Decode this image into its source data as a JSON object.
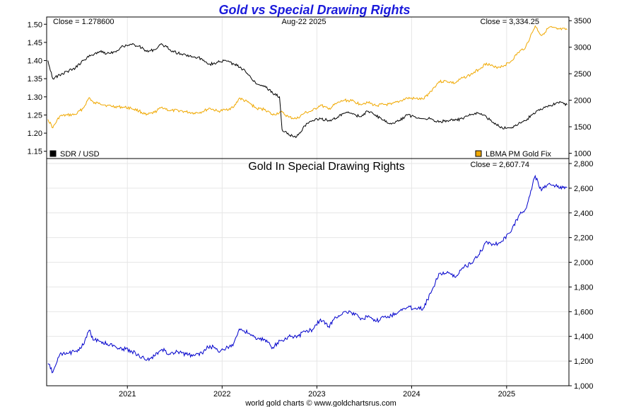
{
  "chart_data": [
    {
      "type": "line",
      "title": "Gold vs Special Drawing Rights",
      "date_label": "Aug-22 2025",
      "x_ticks": [
        "2021",
        "2022",
        "2023",
        "2024",
        "2025"
      ],
      "y_left": {
        "ticks": [
          "1.15",
          "1.20",
          "1.25",
          "1.30",
          "1.35",
          "1.40",
          "1.45",
          "1.50"
        ],
        "range": [
          1.13,
          1.52
        ]
      },
      "y_right": {
        "ticks": [
          "1000",
          "1500",
          "2000",
          "2500",
          "3000",
          "3500"
        ],
        "range": [
          900,
          3570
        ]
      },
      "series": [
        {
          "name": "SDR / USD",
          "axis": "left",
          "color": "#000000",
          "close_text": "Close = 1.278600",
          "points": [
            [
              "2020-03-01",
              1.4
            ],
            [
              "2020-03-20",
              1.35
            ],
            [
              "2020-04-15",
              1.36
            ],
            [
              "2020-05-15",
              1.37
            ],
            [
              "2020-06-15",
              1.38
            ],
            [
              "2020-07-15",
              1.4
            ],
            [
              "2020-08-15",
              1.415
            ],
            [
              "2020-09-15",
              1.425
            ],
            [
              "2020-10-15",
              1.42
            ],
            [
              "2020-11-15",
              1.425
            ],
            [
              "2020-12-15",
              1.44
            ],
            [
              "2021-01-15",
              1.445
            ],
            [
              "2021-02-15",
              1.44
            ],
            [
              "2021-03-15",
              1.425
            ],
            [
              "2021-04-15",
              1.43
            ],
            [
              "2021-05-15",
              1.445
            ],
            [
              "2021-06-15",
              1.43
            ],
            [
              "2021-07-15",
              1.42
            ],
            [
              "2021-08-15",
              1.415
            ],
            [
              "2021-09-15",
              1.41
            ],
            [
              "2021-10-15",
              1.405
            ],
            [
              "2021-11-15",
              1.39
            ],
            [
              "2021-12-15",
              1.395
            ],
            [
              "2022-01-15",
              1.4
            ],
            [
              "2022-02-15",
              1.39
            ],
            [
              "2022-03-15",
              1.38
            ],
            [
              "2022-04-15",
              1.36
            ],
            [
              "2022-05-15",
              1.335
            ],
            [
              "2022-06-15",
              1.33
            ],
            [
              "2022-07-15",
              1.31
            ],
            [
              "2022-08-10",
              1.3
            ],
            [
              "2022-08-20",
              1.21
            ],
            [
              "2022-09-15",
              1.195
            ],
            [
              "2022-10-15",
              1.19
            ],
            [
              "2022-11-15",
              1.22
            ],
            [
              "2022-12-15",
              1.235
            ],
            [
              "2023-01-15",
              1.24
            ],
            [
              "2023-02-15",
              1.235
            ],
            [
              "2023-03-15",
              1.24
            ],
            [
              "2023-04-15",
              1.255
            ],
            [
              "2023-05-15",
              1.255
            ],
            [
              "2023-06-15",
              1.245
            ],
            [
              "2023-07-15",
              1.26
            ],
            [
              "2023-08-15",
              1.25
            ],
            [
              "2023-09-15",
              1.235
            ],
            [
              "2023-10-15",
              1.225
            ],
            [
              "2023-11-15",
              1.235
            ],
            [
              "2023-12-15",
              1.25
            ],
            [
              "2024-01-15",
              1.245
            ],
            [
              "2024-02-15",
              1.24
            ],
            [
              "2024-03-15",
              1.24
            ],
            [
              "2024-04-15",
              1.23
            ],
            [
              "2024-05-15",
              1.235
            ],
            [
              "2024-06-15",
              1.235
            ],
            [
              "2024-07-15",
              1.24
            ],
            [
              "2024-08-15",
              1.25
            ],
            [
              "2024-09-15",
              1.255
            ],
            [
              "2024-10-15",
              1.245
            ],
            [
              "2024-11-15",
              1.225
            ],
            [
              "2024-12-15",
              1.215
            ],
            [
              "2025-01-15",
              1.215
            ],
            [
              "2025-02-15",
              1.225
            ],
            [
              "2025-03-15",
              1.235
            ],
            [
              "2025-04-15",
              1.255
            ],
            [
              "2025-05-15",
              1.265
            ],
            [
              "2025-06-15",
              1.275
            ],
            [
              "2025-07-15",
              1.285
            ],
            [
              "2025-08-22",
              1.2786
            ]
          ]
        },
        {
          "name": "LBMA PM Gold Fix",
          "axis": "right",
          "color": "#f0a800",
          "close_text": "Close = 3,334.25",
          "points": [
            [
              "2020-03-01",
              1640
            ],
            [
              "2020-03-20",
              1480
            ],
            [
              "2020-04-15",
              1700
            ],
            [
              "2020-05-15",
              1720
            ],
            [
              "2020-06-15",
              1730
            ],
            [
              "2020-07-15",
              1850
            ],
            [
              "2020-08-07",
              2050
            ],
            [
              "2020-08-25",
              1940
            ],
            [
              "2020-09-15",
              1950
            ],
            [
              "2020-10-15",
              1900
            ],
            [
              "2020-11-15",
              1880
            ],
            [
              "2020-12-15",
              1870
            ],
            [
              "2021-01-15",
              1850
            ],
            [
              "2021-02-15",
              1800
            ],
            [
              "2021-03-15",
              1720
            ],
            [
              "2021-04-15",
              1770
            ],
            [
              "2021-05-15",
              1870
            ],
            [
              "2021-06-15",
              1800
            ],
            [
              "2021-07-15",
              1810
            ],
            [
              "2021-08-15",
              1780
            ],
            [
              "2021-09-15",
              1760
            ],
            [
              "2021-10-15",
              1780
            ],
            [
              "2021-11-15",
              1850
            ],
            [
              "2021-12-15",
              1790
            ],
            [
              "2022-01-15",
              1820
            ],
            [
              "2022-02-15",
              1870
            ],
            [
              "2022-03-08",
              2040
            ],
            [
              "2022-04-15",
              1950
            ],
            [
              "2022-05-15",
              1840
            ],
            [
              "2022-06-15",
              1830
            ],
            [
              "2022-07-15",
              1720
            ],
            [
              "2022-08-15",
              1780
            ],
            [
              "2022-09-15",
              1680
            ],
            [
              "2022-10-15",
              1650
            ],
            [
              "2022-11-15",
              1760
            ],
            [
              "2022-12-15",
              1800
            ],
            [
              "2023-01-15",
              1910
            ],
            [
              "2023-02-15",
              1830
            ],
            [
              "2023-03-15",
              1930
            ],
            [
              "2023-04-15",
              2000
            ],
            [
              "2023-05-15",
              1990
            ],
            [
              "2023-06-15",
              1930
            ],
            [
              "2023-07-15",
              1960
            ],
            [
              "2023-08-15",
              1900
            ],
            [
              "2023-09-15",
              1920
            ],
            [
              "2023-10-15",
              1920
            ],
            [
              "2023-11-15",
              1980
            ],
            [
              "2023-12-15",
              2040
            ],
            [
              "2024-01-15",
              2030
            ],
            [
              "2024-02-15",
              2020
            ],
            [
              "2024-03-15",
              2170
            ],
            [
              "2024-04-15",
              2350
            ],
            [
              "2024-05-15",
              2360
            ],
            [
              "2024-06-15",
              2320
            ],
            [
              "2024-07-15",
              2420
            ],
            [
              "2024-08-15",
              2480
            ],
            [
              "2024-09-15",
              2580
            ],
            [
              "2024-10-15",
              2700
            ],
            [
              "2024-11-15",
              2620
            ],
            [
              "2024-12-15",
              2640
            ],
            [
              "2025-01-15",
              2720
            ],
            [
              "2025-02-15",
              2900
            ],
            [
              "2025-03-15",
              3000
            ],
            [
              "2025-04-21",
              3400
            ],
            [
              "2025-05-15",
              3220
            ],
            [
              "2025-06-15",
              3380
            ],
            [
              "2025-07-15",
              3340
            ],
            [
              "2025-08-22",
              3334.25
            ]
          ]
        }
      ]
    },
    {
      "type": "line",
      "title": "Gold In Special Drawing Rights",
      "x_ticks": [
        "2021",
        "2022",
        "2023",
        "2024",
        "2025"
      ],
      "y_right": {
        "ticks": [
          "1,000",
          "1,200",
          "1,400",
          "1,600",
          "1,800",
          "2,000",
          "2,200",
          "2,400",
          "2,600",
          "2,800"
        ],
        "range": [
          1000,
          2840
        ]
      },
      "series": [
        {
          "color": "#0000cc",
          "close_text": "Close = 2,607.74",
          "points": [
            [
              "2020-03-01",
              1180
            ],
            [
              "2020-03-20",
              1110
            ],
            [
              "2020-04-15",
              1250
            ],
            [
              "2020-05-15",
              1260
            ],
            [
              "2020-06-15",
              1280
            ],
            [
              "2020-07-15",
              1330
            ],
            [
              "2020-08-07",
              1450
            ],
            [
              "2020-08-25",
              1370
            ],
            [
              "2020-09-15",
              1360
            ],
            [
              "2020-10-15",
              1340
            ],
            [
              "2020-11-15",
              1320
            ],
            [
              "2020-12-15",
              1300
            ],
            [
              "2021-01-15",
              1285
            ],
            [
              "2021-02-15",
              1245
            ],
            [
              "2021-03-15",
              1205
            ],
            [
              "2021-04-15",
              1240
            ],
            [
              "2021-05-15",
              1295
            ],
            [
              "2021-06-15",
              1255
            ],
            [
              "2021-07-15",
              1275
            ],
            [
              "2021-08-15",
              1255
            ],
            [
              "2021-09-15",
              1245
            ],
            [
              "2021-10-15",
              1265
            ],
            [
              "2021-11-15",
              1325
            ],
            [
              "2021-12-15",
              1285
            ],
            [
              "2022-01-15",
              1300
            ],
            [
              "2022-02-15",
              1345
            ],
            [
              "2022-03-08",
              1460
            ],
            [
              "2022-04-15",
              1425
            ],
            [
              "2022-05-15",
              1375
            ],
            [
              "2022-06-15",
              1375
            ],
            [
              "2022-07-15",
              1310
            ],
            [
              "2022-08-15",
              1365
            ],
            [
              "2022-09-15",
              1400
            ],
            [
              "2022-10-15",
              1390
            ],
            [
              "2022-11-15",
              1440
            ],
            [
              "2022-12-15",
              1455
            ],
            [
              "2023-01-15",
              1540
            ],
            [
              "2023-02-15",
              1480
            ],
            [
              "2023-03-15",
              1555
            ],
            [
              "2023-04-15",
              1600
            ],
            [
              "2023-05-15",
              1590
            ],
            [
              "2023-06-15",
              1550
            ],
            [
              "2023-07-15",
              1555
            ],
            [
              "2023-08-15",
              1520
            ],
            [
              "2023-09-15",
              1555
            ],
            [
              "2023-10-15",
              1570
            ],
            [
              "2023-11-15",
              1605
            ],
            [
              "2023-12-15",
              1635
            ],
            [
              "2024-01-15",
              1630
            ],
            [
              "2024-02-15",
              1630
            ],
            [
              "2024-03-15",
              1750
            ],
            [
              "2024-04-15",
              1910
            ],
            [
              "2024-05-15",
              1915
            ],
            [
              "2024-06-15",
              1880
            ],
            [
              "2024-07-15",
              1955
            ],
            [
              "2024-08-15",
              1985
            ],
            [
              "2024-09-15",
              2060
            ],
            [
              "2024-10-15",
              2170
            ],
            [
              "2024-11-15",
              2140
            ],
            [
              "2024-12-15",
              2170
            ],
            [
              "2025-01-15",
              2240
            ],
            [
              "2025-02-15",
              2370
            ],
            [
              "2025-03-15",
              2430
            ],
            [
              "2025-04-21",
              2700
            ],
            [
              "2025-05-15",
              2580
            ],
            [
              "2025-06-15",
              2640
            ],
            [
              "2025-07-15",
              2610
            ],
            [
              "2025-08-22",
              2607.74
            ]
          ]
        }
      ]
    }
  ],
  "footer": "world gold charts © www.goldchartsrus.com"
}
